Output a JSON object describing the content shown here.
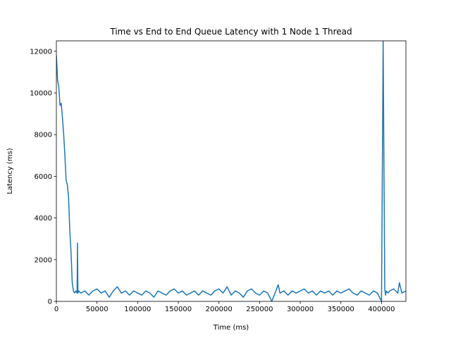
{
  "chart_data": {
    "type": "line",
    "title": "Time vs End to End Queue Latency with 1 Node 1 Thread",
    "xlabel": "Time (ms)",
    "ylabel": "Latency (ms)",
    "xlim": [
      0,
      430000
    ],
    "ylim": [
      0,
      12500
    ],
    "xticks": [
      0,
      50000,
      100000,
      150000,
      200000,
      250000,
      300000,
      350000,
      400000
    ],
    "yticks": [
      0,
      2000,
      4000,
      6000,
      8000,
      10000,
      12000
    ],
    "grid": false,
    "legend": "none",
    "series": [
      {
        "color": "#1f77b4",
        "x": [
          0,
          1500,
          3000,
          4500,
          6000,
          7500,
          9000,
          10500,
          12000,
          13500,
          15000,
          16500,
          18000,
          19500,
          21000,
          22500,
          24000,
          25500,
          26000,
          26500,
          27500,
          30000,
          35000,
          40000,
          45000,
          50000,
          55000,
          60000,
          65000,
          70000,
          75000,
          80000,
          85000,
          90000,
          95000,
          100000,
          105000,
          110000,
          115000,
          120000,
          125000,
          130000,
          135000,
          140000,
          145000,
          150000,
          155000,
          160000,
          165000,
          170000,
          175000,
          180000,
          185000,
          190000,
          195000,
          200000,
          205000,
          210000,
          215000,
          220000,
          225000,
          230000,
          235000,
          240000,
          245000,
          250000,
          255000,
          260000,
          265000,
          270000,
          273000,
          275000,
          280000,
          285000,
          290000,
          295000,
          300000,
          305000,
          310000,
          315000,
          320000,
          325000,
          330000,
          335000,
          340000,
          345000,
          350000,
          355000,
          360000,
          365000,
          370000,
          375000,
          380000,
          385000,
          390000,
          395000,
          400000,
          402000,
          404000,
          405000,
          406000,
          408000,
          410000,
          415000,
          420000,
          422000,
          425000,
          430000
        ],
        "y": [
          11800,
          10600,
          10300,
          9400,
          9500,
          8800,
          8000,
          7000,
          5800,
          5600,
          5000,
          3400,
          2400,
          900,
          500,
          400,
          500,
          400,
          2800,
          400,
          500,
          400,
          500,
          300,
          500,
          600,
          400,
          500,
          200,
          500,
          700,
          400,
          500,
          300,
          500,
          400,
          300,
          500,
          400,
          200,
          500,
          400,
          300,
          500,
          600,
          400,
          500,
          300,
          400,
          500,
          300,
          500,
          400,
          300,
          500,
          600,
          400,
          700,
          300,
          500,
          400,
          200,
          500,
          600,
          400,
          300,
          500,
          400,
          0,
          500,
          800,
          400,
          500,
          300,
          500,
          400,
          500,
          600,
          400,
          500,
          300,
          500,
          400,
          500,
          300,
          500,
          400,
          500,
          600,
          400,
          300,
          500,
          400,
          300,
          500,
          400,
          0,
          12500,
          600,
          300,
          500,
          400,
          500,
          600,
          400,
          900,
          400,
          500
        ]
      }
    ]
  }
}
